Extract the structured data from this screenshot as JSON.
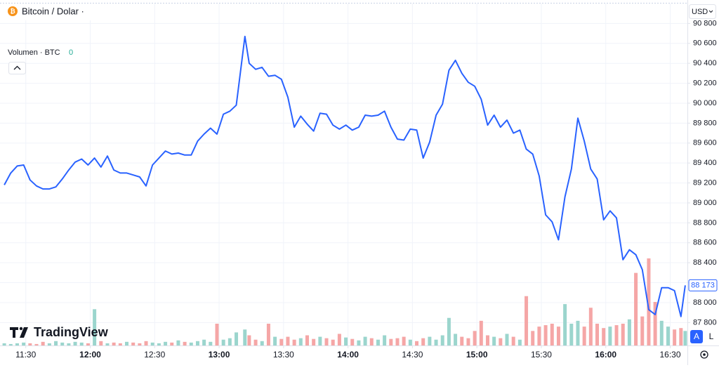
{
  "header": {
    "symbol": "Bitcoin / Dolar ·",
    "currency": "USD"
  },
  "branding": "TradingView",
  "controls": {
    "auto": "A",
    "log": "L"
  },
  "chart_data": {
    "type": "line",
    "color": "#2962ff",
    "grid": true,
    "x": [
      "11:20",
      "11:23",
      "11:26",
      "11:29",
      "11:32",
      "11:35",
      "11:38",
      "11:41",
      "11:44",
      "11:47",
      "11:50",
      "11:53",
      "11:56",
      "11:59",
      "12:02",
      "12:05",
      "12:08",
      "12:11",
      "12:14",
      "12:17",
      "12:20",
      "12:23",
      "12:26",
      "12:29",
      "12:32",
      "12:35",
      "12:38",
      "12:41",
      "12:44",
      "12:47",
      "12:50",
      "12:53",
      "12:56",
      "12:59",
      "13:02",
      "13:05",
      "13:08",
      "13:12",
      "13:14",
      "13:17",
      "13:20",
      "13:23",
      "13:26",
      "13:29",
      "13:32",
      "13:35",
      "13:38",
      "13:41",
      "13:44",
      "13:47",
      "13:50",
      "13:53",
      "13:56",
      "13:59",
      "14:02",
      "14:05",
      "14:08",
      "14:11",
      "14:14",
      "14:17",
      "14:20",
      "14:23",
      "14:26",
      "14:29",
      "14:32",
      "14:35",
      "14:38",
      "14:41",
      "14:44",
      "14:47",
      "14:50",
      "14:53",
      "14:56",
      "14:59",
      "15:02",
      "15:05",
      "15:08",
      "15:11",
      "15:14",
      "15:17",
      "15:20",
      "15:23",
      "15:26",
      "15:29",
      "15:32",
      "15:35",
      "15:38",
      "15:41",
      "15:44",
      "15:47",
      "15:50",
      "15:53",
      "15:56",
      "15:59",
      "16:02",
      "16:05",
      "16:08",
      "16:11",
      "16:14",
      "16:17",
      "16:20",
      "16:23",
      "16:26",
      "16:29",
      "16:32",
      "16:35",
      "16:37"
    ],
    "values": [
      89180,
      89300,
      89370,
      89380,
      89230,
      89170,
      89140,
      89140,
      89160,
      89240,
      89330,
      89410,
      89440,
      89380,
      89450,
      89360,
      89470,
      89330,
      89300,
      89300,
      89280,
      89260,
      89170,
      89380,
      89450,
      89520,
      89490,
      89500,
      89480,
      89480,
      89620,
      89690,
      89750,
      89690,
      89890,
      89920,
      89980,
      90670,
      90400,
      90340,
      90360,
      90270,
      90280,
      90240,
      90060,
      89760,
      89870,
      89790,
      89720,
      89900,
      89890,
      89780,
      89740,
      89780,
      89730,
      89760,
      89880,
      89870,
      89880,
      89920,
      89760,
      89640,
      89630,
      89740,
      89730,
      89450,
      89610,
      89880,
      89990,
      90330,
      90430,
      90300,
      90210,
      90170,
      90040,
      89780,
      89880,
      89760,
      89830,
      89700,
      89730,
      89540,
      89490,
      89270,
      88880,
      88810,
      88630,
      89060,
      89340,
      89850,
      89620,
      89340,
      89240,
      88830,
      88920,
      88850,
      88430,
      88530,
      88480,
      88330,
      87930,
      87880,
      88150,
      88150,
      88120,
      87860,
      88173
    ],
    "last_price": 88173,
    "last_price_label": "88 173",
    "xlim": [
      "11:18",
      "16:38"
    ],
    "xticks": [
      "11:30",
      "12:00",
      "12:30",
      "13:00",
      "13:30",
      "14:00",
      "14:30",
      "15:00",
      "15:30",
      "16:00",
      "16:30"
    ],
    "ylim": [
      87570,
      91000
    ],
    "yticks": [
      {
        "value": 87800,
        "label": "87 800"
      },
      {
        "value": 88000,
        "label": "88 000"
      },
      {
        "value": 88200,
        "label": "88 200"
      },
      {
        "value": 88400,
        "label": "88 400"
      },
      {
        "value": 88600,
        "label": "88 600"
      },
      {
        "value": 88800,
        "label": "88 800"
      },
      {
        "value": 89000,
        "label": "89 000"
      },
      {
        "value": 89200,
        "label": "89 200"
      },
      {
        "value": 89400,
        "label": "89 400"
      },
      {
        "value": 89600,
        "label": "89 600"
      },
      {
        "value": 89800,
        "label": "89 800"
      },
      {
        "value": 90000,
        "label": "90 000"
      },
      {
        "value": 90200,
        "label": "90 200"
      },
      {
        "value": 90400,
        "label": "90 400"
      },
      {
        "value": 90600,
        "label": "90 600"
      },
      {
        "value": 90800,
        "label": "90 800"
      }
    ],
    "volume_legend": {
      "name": "Volumen · BTC",
      "value": 0
    },
    "volume": {
      "up_color": "#9bd5cd",
      "down_color": "#f5a6a6",
      "values": [
        3,
        2,
        3,
        4,
        3,
        2,
        5,
        3,
        6,
        4,
        3,
        5,
        4,
        3,
        50,
        6,
        3,
        4,
        3,
        5,
        4,
        3,
        6,
        4,
        3,
        5,
        4,
        7,
        5,
        4,
        6,
        8,
        5,
        30,
        8,
        10,
        18,
        22,
        14,
        8,
        6,
        30,
        12,
        9,
        12,
        8,
        10,
        14,
        9,
        12,
        10,
        8,
        16,
        11,
        9,
        7,
        12,
        10,
        8,
        14,
        9,
        10,
        12,
        8,
        6,
        10,
        12,
        8,
        14,
        38,
        16,
        12,
        10,
        20,
        34,
        14,
        12,
        10,
        16,
        12,
        8,
        68,
        20,
        26,
        28,
        30,
        26,
        57,
        30,
        34,
        26,
        52,
        30,
        24,
        26,
        28,
        30,
        36,
        100,
        40,
        120,
        60,
        34,
        26,
        22,
        24,
        20
      ]
    }
  }
}
